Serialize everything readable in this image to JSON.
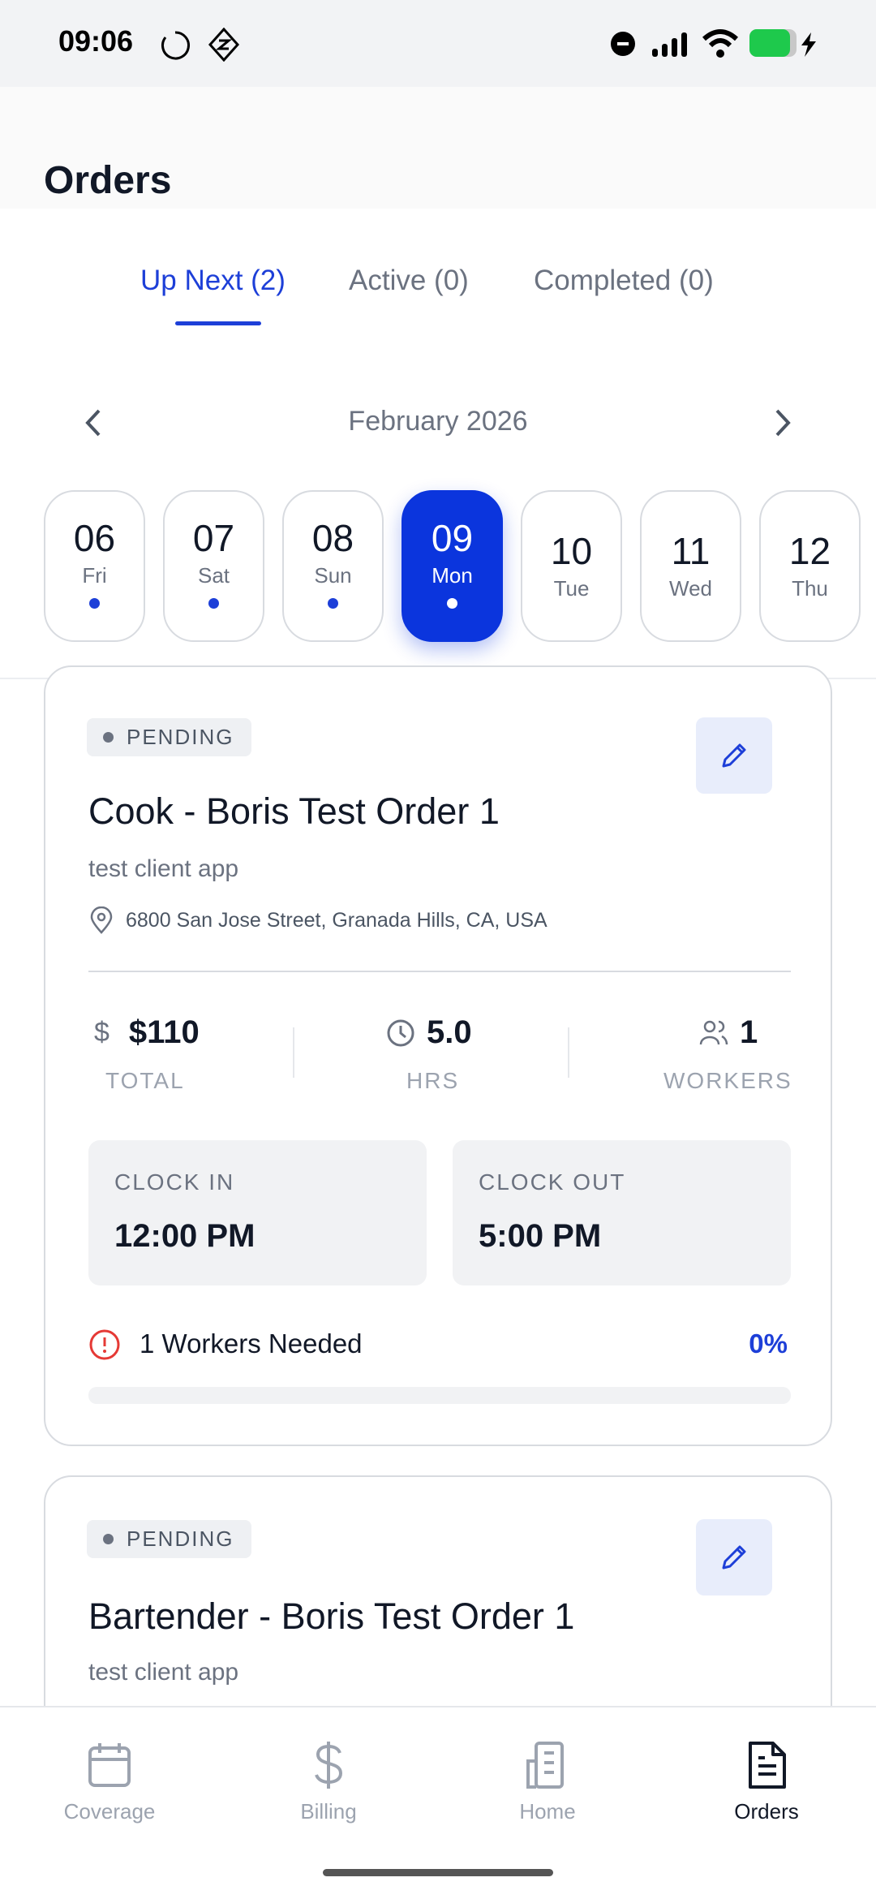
{
  "status_bar": {
    "time": "09:06"
  },
  "header": {
    "title": "Orders"
  },
  "tabs": [
    {
      "label": "Up Next (2)",
      "active": true
    },
    {
      "label": "Active (0)",
      "active": false
    },
    {
      "label": "Completed (0)",
      "active": false
    }
  ],
  "calendar": {
    "month": "February 2026",
    "days": [
      {
        "num": "06",
        "dow": "Fri",
        "dot": true,
        "selected": false
      },
      {
        "num": "07",
        "dow": "Sat",
        "dot": true,
        "selected": false
      },
      {
        "num": "08",
        "dow": "Sun",
        "dot": true,
        "selected": false
      },
      {
        "num": "09",
        "dow": "Mon",
        "dot": true,
        "selected": true
      },
      {
        "num": "10",
        "dow": "Tue",
        "dot": false,
        "selected": false
      },
      {
        "num": "11",
        "dow": "Wed",
        "dot": false,
        "selected": false
      },
      {
        "num": "12",
        "dow": "Thu",
        "dot": false,
        "selected": false
      }
    ]
  },
  "orders": [
    {
      "status": "PENDING",
      "title": "Cook - Boris Test Order 1",
      "client": "test client app",
      "address": "6800 San Jose Street, Granada Hills, CA, USA",
      "total": "$110",
      "total_label": "TOTAL",
      "hours": "5.0",
      "hours_label": "HRS",
      "workers": "1",
      "workers_label": "WORKERS",
      "clock_in_label": "CLOCK IN",
      "clock_in": "12:00 PM",
      "clock_out_label": "CLOCK OUT",
      "clock_out": "5:00 PM",
      "needed": "1 Workers Needed",
      "fill_percent": "0%",
      "fill_value": 0
    },
    {
      "status": "PENDING",
      "title": "Bartender - Boris Test Order 1",
      "client": "test client app"
    }
  ],
  "nav": [
    {
      "label": "Coverage",
      "icon": "calendar-icon"
    },
    {
      "label": "Billing",
      "icon": "dollar-icon"
    },
    {
      "label": "Home",
      "icon": "building-icon"
    },
    {
      "label": "Orders",
      "icon": "document-icon",
      "active": true
    }
  ],
  "colors": {
    "accent": "#0b35dd",
    "alert": "#e53935",
    "battery": "#1ec94c"
  }
}
